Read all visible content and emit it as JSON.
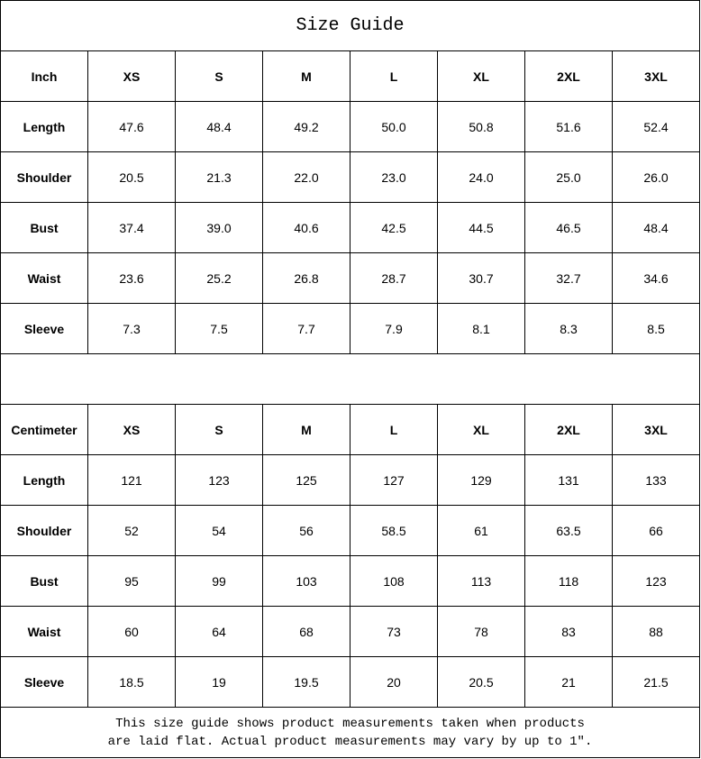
{
  "title": "Size Guide",
  "sizes": [
    "XS",
    "S",
    "M",
    "L",
    "XL",
    "2XL",
    "3XL"
  ],
  "inch": {
    "unit_label": "Inch",
    "rows": [
      {
        "label": "Length",
        "values": [
          "47.6",
          "48.4",
          "49.2",
          "50.0",
          "50.8",
          "51.6",
          "52.4"
        ]
      },
      {
        "label": "Shoulder",
        "values": [
          "20.5",
          "21.3",
          "22.0",
          "23.0",
          "24.0",
          "25.0",
          "26.0"
        ]
      },
      {
        "label": "Bust",
        "values": [
          "37.4",
          "39.0",
          "40.6",
          "42.5",
          "44.5",
          "46.5",
          "48.4"
        ]
      },
      {
        "label": "Waist",
        "values": [
          "23.6",
          "25.2",
          "26.8",
          "28.7",
          "30.7",
          "32.7",
          "34.6"
        ]
      },
      {
        "label": "Sleeve",
        "values": [
          "7.3",
          "7.5",
          "7.7",
          "7.9",
          "8.1",
          "8.3",
          "8.5"
        ]
      }
    ]
  },
  "cm": {
    "unit_label": "Centimeter",
    "rows": [
      {
        "label": "Length",
        "values": [
          "121",
          "123",
          "125",
          "127",
          "129",
          "131",
          "133"
        ]
      },
      {
        "label": "Shoulder",
        "values": [
          "52",
          "54",
          "56",
          "58.5",
          "61",
          "63.5",
          "66"
        ]
      },
      {
        "label": "Bust",
        "values": [
          "95",
          "99",
          "103",
          "108",
          "113",
          "118",
          "123"
        ]
      },
      {
        "label": "Waist",
        "values": [
          "60",
          "64",
          "68",
          "73",
          "78",
          "83",
          "88"
        ]
      },
      {
        "label": "Sleeve",
        "values": [
          "18.5",
          "19",
          "19.5",
          "20",
          "20.5",
          "21",
          "21.5"
        ]
      }
    ]
  },
  "note": {
    "line1": "This size guide shows product measurements taken when products",
    "line2": "are laid flat. Actual product measurements may vary by up to 1″."
  }
}
